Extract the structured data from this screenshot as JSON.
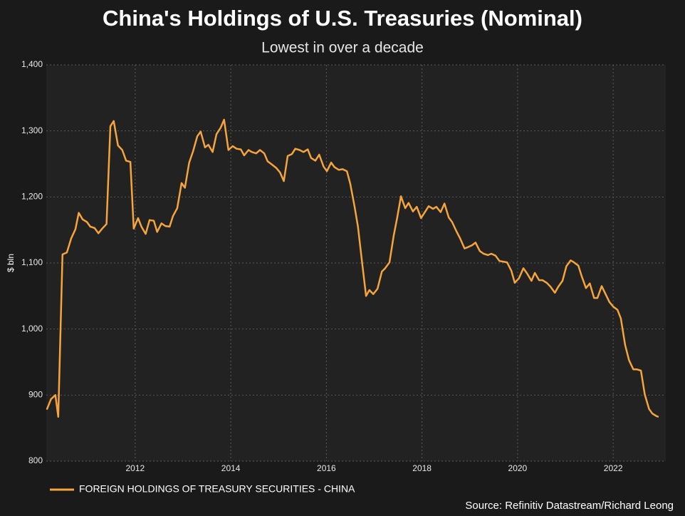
{
  "chart_data": {
    "type": "line",
    "title": "China's Holdings of U.S. Treasuries (Nominal)",
    "subtitle": "Lowest in over a decade",
    "y_label": "$ bln",
    "source": "Source: Refinitiv Datastream/Richard Leong",
    "grid": true,
    "legend": "bottom-left",
    "xlim": [
      2010.14,
      2023.1
    ],
    "xticks": [
      2012,
      2014,
      2016,
      2018,
      2020,
      2022
    ],
    "ylim": [
      800,
      1400
    ],
    "yticks": [
      800,
      900,
      {
        "value": 1000,
        "label": "1,000"
      },
      {
        "value": 1100,
        "label": "1,100"
      },
      {
        "value": 1200,
        "label": "1,200"
      },
      {
        "value": 1300,
        "label": "1,300"
      },
      {
        "value": 1400,
        "label": "1,400"
      }
    ],
    "x": [
      2010.15,
      2010.24,
      2010.33,
      2010.39,
      2010.48,
      2010.57,
      2010.66,
      2010.75,
      2010.82,
      2010.9,
      2010.99,
      2011.06,
      2011.15,
      2011.23,
      2011.31,
      2011.4,
      2011.48,
      2011.55,
      2011.64,
      2011.73,
      2011.81,
      2011.9,
      2011.97,
      2012.06,
      2012.13,
      2012.22,
      2012.3,
      2012.39,
      2012.46,
      2012.55,
      2012.63,
      2012.72,
      2012.79,
      2012.88,
      2012.97,
      2013.04,
      2013.13,
      2013.21,
      2013.3,
      2013.37,
      2013.46,
      2013.53,
      2013.62,
      2013.7,
      2013.79,
      2013.86,
      2013.95,
      2014.04,
      2014.12,
      2014.21,
      2014.28,
      2014.37,
      2014.44,
      2014.53,
      2014.61,
      2014.7,
      2014.77,
      2014.86,
      2014.95,
      2015.03,
      2015.11,
      2015.19,
      2015.28,
      2015.35,
      2015.44,
      2015.52,
      2015.61,
      2015.68,
      2015.77,
      2015.85,
      2015.94,
      2016.01,
      2016.1,
      2016.17,
      2016.26,
      2016.34,
      2016.43,
      2016.5,
      2016.59,
      2016.66,
      2016.75,
      2016.83,
      2016.9,
      2016.98,
      2017.07,
      2017.16,
      2017.23,
      2017.32,
      2017.41,
      2017.48,
      2017.56,
      2017.65,
      2017.72,
      2017.81,
      2017.89,
      2017.98,
      2018.07,
      2018.14,
      2018.23,
      2018.3,
      2018.39,
      2018.47,
      2018.56,
      2018.63,
      2018.72,
      2018.8,
      2018.89,
      2018.96,
      2019.05,
      2019.12,
      2019.21,
      2019.29,
      2019.38,
      2019.45,
      2019.54,
      2019.62,
      2019.7,
      2019.78,
      2019.87,
      2019.94,
      2020.03,
      2020.12,
      2020.2,
      2020.29,
      2020.36,
      2020.45,
      2020.52,
      2020.61,
      2020.69,
      2020.78,
      2020.85,
      2020.94,
      2021.02,
      2021.11,
      2021.18,
      2021.27,
      2021.34,
      2021.43,
      2021.51,
      2021.6,
      2021.67,
      2021.76,
      2021.84,
      2021.92,
      2022.0,
      2022.09,
      2022.16,
      2022.25,
      2022.33,
      2022.42,
      2022.49,
      2022.58,
      2022.66,
      2022.75,
      2022.82,
      2022.91,
      2022.95
    ],
    "series": [
      {
        "name": "FOREIGN HOLDINGS OF TREASURY SECURITIES - CHINA",
        "color": "#f6a53c",
        "values": [
          878,
          894,
          900,
          867,
          1113,
          1116,
          1137,
          1151,
          1176,
          1166,
          1162,
          1155,
          1153,
          1145,
          1152,
          1159,
          1307,
          1315,
          1278,
          1271,
          1255,
          1253,
          1152,
          1168,
          1155,
          1144,
          1165,
          1164,
          1147,
          1160,
          1156,
          1155,
          1171,
          1183,
          1221,
          1214,
          1252,
          1269,
          1292,
          1299,
          1275,
          1279,
          1268,
          1295,
          1305,
          1317,
          1271,
          1277,
          1273,
          1272,
          1263,
          1271,
          1268,
          1266,
          1271,
          1266,
          1254,
          1249,
          1244,
          1237,
          1224,
          1262,
          1265,
          1273,
          1271,
          1268,
          1272,
          1259,
          1255,
          1264,
          1246,
          1239,
          1252,
          1245,
          1241,
          1242,
          1239,
          1220,
          1185,
          1155,
          1099,
          1050,
          1059,
          1053,
          1061,
          1087,
          1092,
          1101,
          1142,
          1168,
          1201,
          1183,
          1191,
          1178,
          1185,
          1168,
          1178,
          1186,
          1182,
          1185,
          1177,
          1190,
          1169,
          1162,
          1148,
          1137,
          1122,
          1124,
          1127,
          1131,
          1118,
          1114,
          1112,
          1114,
          1111,
          1103,
          1102,
          1101,
          1088,
          1070,
          1077,
          1092,
          1084,
          1073,
          1085,
          1074,
          1074,
          1070,
          1064,
          1055,
          1064,
          1073,
          1095,
          1104,
          1101,
          1096,
          1080,
          1062,
          1069,
          1047,
          1047,
          1065,
          1053,
          1041,
          1034,
          1029,
          1016,
          976,
          953,
          939,
          939,
          937,
          901,
          879,
          872,
          868,
          867
        ]
      }
    ]
  }
}
